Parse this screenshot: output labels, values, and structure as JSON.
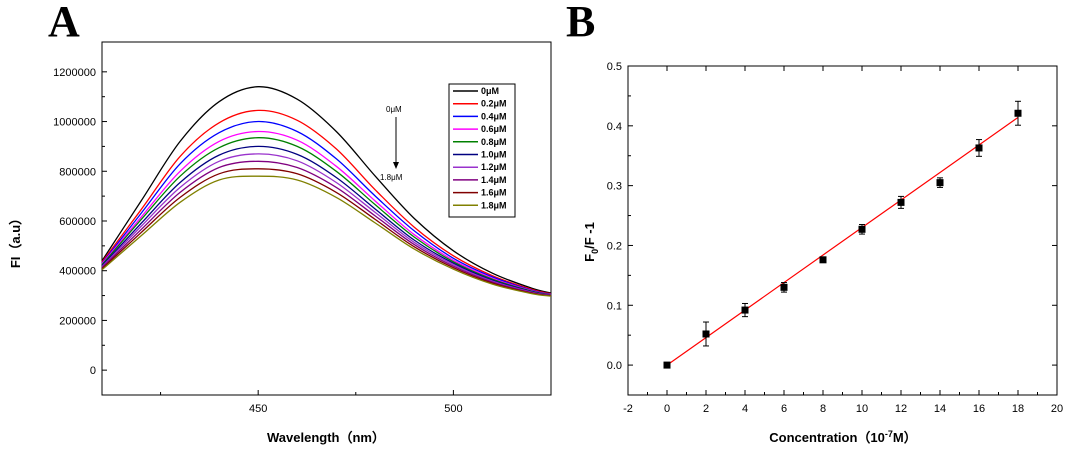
{
  "chart_data": [
    {
      "panel": "A",
      "type": "line",
      "xlabel": "Wavelength（nm）",
      "ylabel": "FI（a.u）",
      "xlim": [
        410,
        525
      ],
      "ylim": [
        -100000,
        1320000
      ],
      "xticks": [
        450,
        500
      ],
      "yticks": [
        0,
        200000,
        400000,
        600000,
        800000,
        1000000,
        1200000
      ],
      "annotation_top": "0μM",
      "annotation_bottom": "1.8μM",
      "x": [
        410,
        420,
        430,
        440,
        450,
        460,
        470,
        480,
        490,
        500,
        510,
        520,
        525
      ],
      "series": [
        {
          "name": "0μM",
          "color": "#000000",
          "values": [
            440000,
            680000,
            920000,
            1080000,
            1140000,
            1090000,
            960000,
            780000,
            610000,
            480000,
            390000,
            330000,
            310000
          ]
        },
        {
          "name": "0.2μM",
          "color": "#ff0000",
          "values": [
            435000,
            645000,
            860000,
            995000,
            1045000,
            1005000,
            890000,
            725000,
            575000,
            460000,
            380000,
            325000,
            307000
          ]
        },
        {
          "name": "0.4μM",
          "color": "#0000ff",
          "values": [
            430000,
            630000,
            830000,
            955000,
            1000000,
            960000,
            850000,
            700000,
            560000,
            450000,
            375000,
            322000,
            305000
          ]
        },
        {
          "name": "0.6μM",
          "color": "#ff00ff",
          "values": [
            428000,
            615000,
            800000,
            920000,
            960000,
            925000,
            820000,
            680000,
            545000,
            442000,
            370000,
            320000,
            304000
          ]
        },
        {
          "name": "0.8μM",
          "color": "#008000",
          "values": [
            424000,
            605000,
            780000,
            895000,
            935000,
            900000,
            800000,
            665000,
            535000,
            436000,
            366000,
            318000,
            303000
          ]
        },
        {
          "name": "1.0μM",
          "color": "#000080",
          "values": [
            420000,
            590000,
            755000,
            865000,
            900000,
            868000,
            775000,
            648000,
            523000,
            430000,
            362000,
            316000,
            302000
          ]
        },
        {
          "name": "1.2μM",
          "color": "#9932cc",
          "values": [
            416000,
            578000,
            735000,
            840000,
            870000,
            842000,
            755000,
            634000,
            514000,
            424000,
            358000,
            314000,
            301000
          ]
        },
        {
          "name": "1.4μM",
          "color": "#800080",
          "values": [
            412000,
            565000,
            715000,
            815000,
            840000,
            815000,
            735000,
            620000,
            505000,
            418000,
            354000,
            312000,
            300000
          ]
        },
        {
          "name": "1.6μM",
          "color": "#800000",
          "values": [
            408000,
            553000,
            695000,
            790000,
            810000,
            790000,
            715000,
            606000,
            496000,
            412000,
            350000,
            310000,
            299000
          ]
        },
        {
          "name": "1.8μM",
          "color": "#808000",
          "values": [
            404000,
            540000,
            675000,
            765000,
            780000,
            765000,
            695000,
            592000,
            487000,
            406000,
            346000,
            308000,
            298000
          ]
        }
      ]
    },
    {
      "panel": "B",
      "type": "scatter",
      "xlabel_main": "Concentration（10",
      "xlabel_sup": "-7",
      "xlabel_tail": "M）",
      "ylabel_main": "F",
      "ylabel_sub": "0",
      "ylabel_tail": "/F -1",
      "xlim": [
        -2,
        20
      ],
      "ylim": [
        -0.05,
        0.5
      ],
      "xticks": [
        -2,
        0,
        2,
        4,
        6,
        8,
        10,
        12,
        14,
        16,
        18,
        20
      ],
      "yticks": [
        0.0,
        0.1,
        0.2,
        0.3,
        0.4,
        0.5
      ],
      "ytick_labels": [
        "0.0",
        "0.1",
        "0.2",
        "0.3",
        "0.4",
        "0.5"
      ],
      "points": [
        {
          "x": 0,
          "y": 0.0,
          "err": 0.0
        },
        {
          "x": 2,
          "y": 0.052,
          "err": 0.02
        },
        {
          "x": 4,
          "y": 0.092,
          "err": 0.011
        },
        {
          "x": 6,
          "y": 0.13,
          "err": 0.008
        },
        {
          "x": 8,
          "y": 0.176,
          "err": 0.004
        },
        {
          "x": 10,
          "y": 0.227,
          "err": 0.008
        },
        {
          "x": 12,
          "y": 0.272,
          "err": 0.01
        },
        {
          "x": 14,
          "y": 0.305,
          "err": 0.008
        },
        {
          "x": 16,
          "y": 0.363,
          "err": 0.014
        },
        {
          "x": 18,
          "y": 0.421,
          "err": 0.02
        }
      ],
      "fit": {
        "x0": 0,
        "y0": 0.0,
        "x1": 18,
        "y1": 0.414,
        "color": "#ff0000"
      }
    }
  ],
  "panels": {
    "a_label": "A",
    "b_label": "B"
  }
}
